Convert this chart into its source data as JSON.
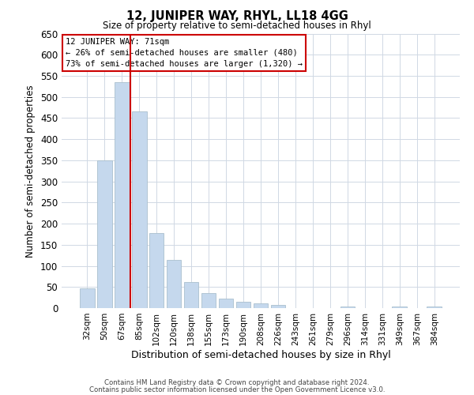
{
  "title": "12, JUNIPER WAY, RHYL, LL18 4GG",
  "subtitle": "Size of property relative to semi-detached houses in Rhyl",
  "xlabel": "Distribution of semi-detached houses by size in Rhyl",
  "ylabel": "Number of semi-detached properties",
  "bar_labels": [
    "32sqm",
    "50sqm",
    "67sqm",
    "85sqm",
    "102sqm",
    "120sqm",
    "138sqm",
    "155sqm",
    "173sqm",
    "190sqm",
    "208sqm",
    "226sqm",
    "243sqm",
    "261sqm",
    "279sqm",
    "296sqm",
    "314sqm",
    "331sqm",
    "349sqm",
    "367sqm",
    "384sqm"
  ],
  "bar_values": [
    47,
    350,
    535,
    465,
    178,
    115,
    62,
    35,
    22,
    15,
    12,
    8,
    0,
    0,
    0,
    3,
    0,
    0,
    4,
    0,
    3
  ],
  "bar_color": "#c5d8ed",
  "bar_edge_color": "#aabfce",
  "vline_color": "#cc0000",
  "annotation_title": "12 JUNIPER WAY: 71sqm",
  "annotation_line2": "← 26% of semi-detached houses are smaller (480)",
  "annotation_line3": "73% of semi-detached houses are larger (1,320) →",
  "annotation_box_edgecolor": "#cc0000",
  "ylim": [
    0,
    650
  ],
  "yticks": [
    0,
    50,
    100,
    150,
    200,
    250,
    300,
    350,
    400,
    450,
    500,
    550,
    600,
    650
  ],
  "footnote1": "Contains HM Land Registry data © Crown copyright and database right 2024.",
  "footnote2": "Contains public sector information licensed under the Open Government Licence v3.0.",
  "bg_color": "#ffffff",
  "grid_color": "#d0d8e4"
}
